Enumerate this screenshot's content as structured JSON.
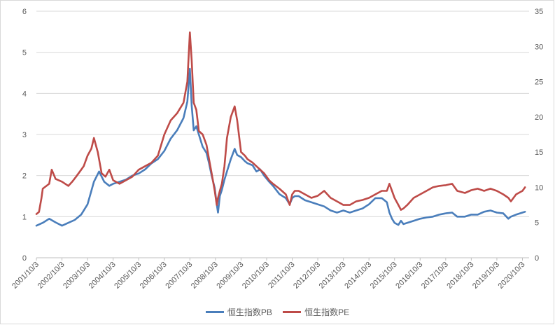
{
  "chart_data": {
    "type": "line",
    "title": "",
    "xlabel": "",
    "ylabel": "",
    "y_left_lim": [
      0,
      6
    ],
    "y_left_ticks": [
      "0",
      "1",
      "2",
      "3",
      "4",
      "5",
      "6"
    ],
    "y_right_lim": [
      0,
      35
    ],
    "y_right_ticks": [
      "0",
      "5",
      "10",
      "15",
      "20",
      "25",
      "30",
      "35"
    ],
    "grid": "horizontal",
    "legend_position": "bottom",
    "categories": [
      "2001/10/3",
      "2002/10/3",
      "2003/10/3",
      "2004/10/3",
      "2005/10/3",
      "2006/10/3",
      "2007/10/3",
      "2008/10/3",
      "2009/10/3",
      "2010/10/3",
      "2011/10/3",
      "2012/10/3",
      "2013/10/3",
      "2014/10/3",
      "2015/10/3",
      "2016/10/3",
      "2017/10/3",
      "2018/10/3",
      "2019/10/3",
      "2020/10/3"
    ],
    "series": [
      {
        "name": "恒生指数PB",
        "axis": "left",
        "color": "#4a7ebb",
        "x": [
          2001.75,
          2002.0,
          2002.25,
          2002.5,
          2002.75,
          2003.0,
          2003.25,
          2003.5,
          2003.75,
          2004.0,
          2004.2,
          2004.4,
          2004.6,
          2004.75,
          2005.0,
          2005.25,
          2005.5,
          2005.75,
          2006.0,
          2006.25,
          2006.5,
          2006.75,
          2007.0,
          2007.25,
          2007.5,
          2007.65,
          2007.75,
          2007.82,
          2007.9,
          2008.0,
          2008.1,
          2008.25,
          2008.4,
          2008.5,
          2008.6,
          2008.72,
          2008.8,
          2008.85,
          2008.92,
          2009.0,
          2009.1,
          2009.2,
          2009.35,
          2009.5,
          2009.6,
          2009.75,
          2009.9,
          2010.0,
          2010.2,
          2010.35,
          2010.5,
          2010.65,
          2010.85,
          2011.0,
          2011.25,
          2011.5,
          2011.65,
          2011.75,
          2011.85,
          2012.0,
          2012.25,
          2012.5,
          2012.75,
          2013.0,
          2013.25,
          2013.5,
          2013.75,
          2014.0,
          2014.25,
          2014.5,
          2014.75,
          2015.0,
          2015.25,
          2015.45,
          2015.55,
          2015.65,
          2015.75,
          2015.9,
          2016.0,
          2016.1,
          2016.25,
          2016.5,
          2016.75,
          2017.0,
          2017.25,
          2017.5,
          2017.75,
          2018.0,
          2018.1,
          2018.2,
          2018.5,
          2018.75,
          2019.0,
          2019.25,
          2019.5,
          2019.75,
          2020.0,
          2020.2,
          2020.3,
          2020.5,
          2020.75,
          2020.85
        ],
        "y": [
          0.78,
          0.85,
          0.95,
          0.86,
          0.78,
          0.85,
          0.92,
          1.05,
          1.3,
          1.85,
          2.1,
          1.85,
          1.75,
          1.8,
          1.85,
          1.9,
          2.0,
          2.05,
          2.15,
          2.3,
          2.4,
          2.6,
          2.9,
          3.1,
          3.4,
          3.8,
          4.6,
          3.7,
          3.1,
          3.2,
          3.0,
          2.7,
          2.55,
          2.3,
          2.0,
          1.7,
          1.3,
          1.1,
          1.5,
          1.65,
          1.9,
          2.1,
          2.4,
          2.65,
          2.5,
          2.45,
          2.35,
          2.3,
          2.25,
          2.1,
          2.15,
          2.0,
          1.85,
          1.75,
          1.55,
          1.45,
          1.3,
          1.45,
          1.5,
          1.5,
          1.4,
          1.35,
          1.3,
          1.25,
          1.15,
          1.1,
          1.15,
          1.1,
          1.15,
          1.2,
          1.3,
          1.45,
          1.45,
          1.35,
          1.1,
          0.95,
          0.85,
          0.8,
          0.9,
          0.82,
          0.85,
          0.9,
          0.95,
          0.98,
          1.0,
          1.05,
          1.08,
          1.1,
          1.05,
          1.0,
          1.0,
          1.05,
          1.05,
          1.12,
          1.15,
          1.1,
          1.08,
          0.95,
          1.0,
          1.05,
          1.1,
          1.12
        ]
      },
      {
        "name": "恒生指数PE",
        "axis": "right",
        "color": "#be4b48",
        "x": [
          2001.75,
          2001.85,
          2001.95,
          2002.0,
          2002.25,
          2002.35,
          2002.5,
          2002.75,
          2003.0,
          2003.15,
          2003.3,
          2003.5,
          2003.6,
          2003.75,
          2003.9,
          2004.0,
          2004.15,
          2004.3,
          2004.45,
          2004.6,
          2004.75,
          2005.0,
          2005.25,
          2005.5,
          2005.75,
          2006.0,
          2006.25,
          2006.5,
          2006.75,
          2007.0,
          2007.25,
          2007.5,
          2007.65,
          2007.75,
          2007.82,
          2007.9,
          2008.0,
          2008.1,
          2008.25,
          2008.4,
          2008.5,
          2008.6,
          2008.72,
          2008.8,
          2008.85,
          2008.92,
          2009.0,
          2009.1,
          2009.2,
          2009.35,
          2009.5,
          2009.6,
          2009.75,
          2009.9,
          2010.0,
          2010.2,
          2010.35,
          2010.5,
          2010.65,
          2010.85,
          2011.0,
          2011.25,
          2011.5,
          2011.65,
          2011.75,
          2011.85,
          2012.0,
          2012.25,
          2012.5,
          2012.75,
          2013.0,
          2013.25,
          2013.5,
          2013.75,
          2014.0,
          2014.25,
          2014.5,
          2014.75,
          2015.0,
          2015.25,
          2015.45,
          2015.55,
          2015.65,
          2015.75,
          2015.9,
          2016.0,
          2016.1,
          2016.25,
          2016.5,
          2016.75,
          2017.0,
          2017.25,
          2017.5,
          2017.75,
          2018.0,
          2018.1,
          2018.2,
          2018.5,
          2018.75,
          2019.0,
          2019.25,
          2019.5,
          2019.75,
          2020.0,
          2020.2,
          2020.3,
          2020.5,
          2020.75,
          2020.85
        ],
        "y": [
          6.2,
          6.5,
          8.5,
          9.8,
          10.5,
          12.5,
          11.2,
          10.8,
          10.2,
          10.8,
          11.5,
          12.5,
          13.0,
          14.5,
          15.5,
          17.0,
          15.0,
          12.0,
          11.5,
          12.5,
          11.0,
          10.5,
          11.0,
          11.5,
          12.5,
          13.0,
          13.5,
          14.5,
          17.5,
          19.5,
          20.5,
          22.0,
          25.0,
          32.0,
          28.0,
          22.0,
          21.0,
          18.0,
          17.5,
          16.0,
          14.0,
          12.0,
          9.5,
          7.5,
          8.5,
          9.5,
          10.5,
          13.0,
          17.0,
          20.0,
          21.5,
          19.5,
          15.0,
          14.5,
          14.0,
          13.5,
          13.0,
          12.5,
          12.0,
          11.0,
          10.5,
          9.8,
          9.0,
          7.5,
          9.0,
          9.5,
          9.5,
          9.0,
          8.5,
          8.8,
          9.5,
          8.5,
          8.0,
          7.5,
          7.5,
          8.0,
          8.2,
          8.5,
          9.0,
          9.5,
          9.5,
          10.5,
          9.5,
          8.5,
          7.5,
          6.8,
          7.0,
          7.5,
          8.5,
          9.0,
          9.5,
          10.0,
          10.2,
          10.3,
          10.5,
          10.0,
          9.5,
          9.2,
          9.6,
          9.8,
          9.5,
          9.8,
          9.5,
          9.0,
          8.5,
          8.0,
          9.0,
          9.5,
          10.0
        ]
      }
    ]
  }
}
